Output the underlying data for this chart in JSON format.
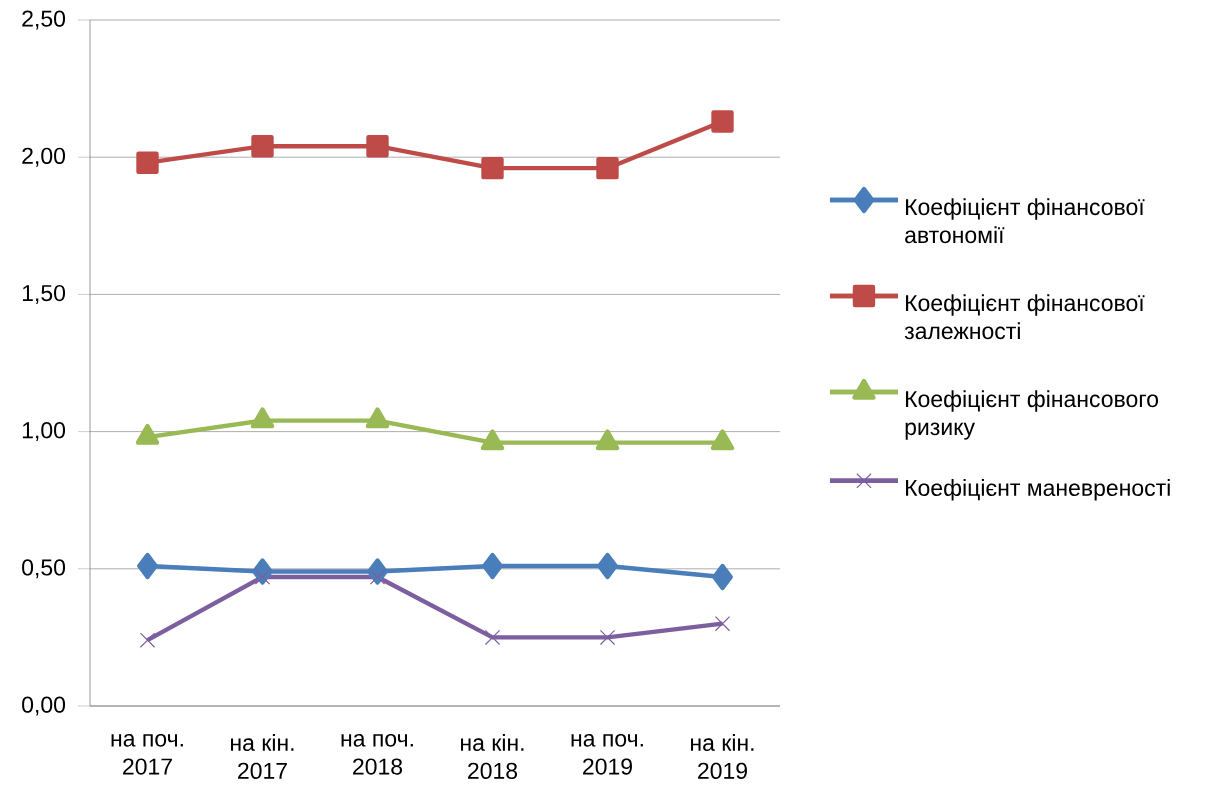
{
  "chart_data": {
    "type": "line",
    "categories": [
      "на поч. 2017",
      "на кін. 2017",
      "на поч. 2018",
      "на кін. 2018",
      "на поч. 2019",
      "на кін. 2019"
    ],
    "series": [
      {
        "name": "Коефіцієнт фінансової автономії",
        "color": "#4a7ebb",
        "marker": "diamond",
        "values": [
          0.51,
          0.49,
          0.49,
          0.51,
          0.51,
          0.47
        ]
      },
      {
        "name": "Коефіцієнт фінансової залежності",
        "color": "#be4b48",
        "marker": "square",
        "values": [
          1.98,
          2.04,
          2.04,
          1.96,
          1.96,
          2.13
        ]
      },
      {
        "name": "Коефіцієнт фінансового ризику",
        "color": "#98b954",
        "marker": "triangle",
        "values": [
          0.98,
          1.04,
          1.04,
          0.96,
          0.96,
          0.96
        ]
      },
      {
        "name": "Коефіцієнт маневреності",
        "color": "#7d5fa0",
        "marker": "cross",
        "values": [
          0.24,
          0.47,
          0.47,
          0.25,
          0.25,
          0.3
        ]
      }
    ],
    "ylim": [
      0,
      2.5
    ],
    "yticks": [
      {
        "value": 0,
        "label": "0,00"
      },
      {
        "value": 0.5,
        "label": "0,50"
      },
      {
        "value": 1,
        "label": "1,00"
      },
      {
        "value": 1.5,
        "label": "1,50"
      },
      {
        "value": 2,
        "label": "2,00"
      },
      {
        "value": 2.5,
        "label": "2,50"
      }
    ],
    "grid": "y",
    "legend": "right"
  }
}
